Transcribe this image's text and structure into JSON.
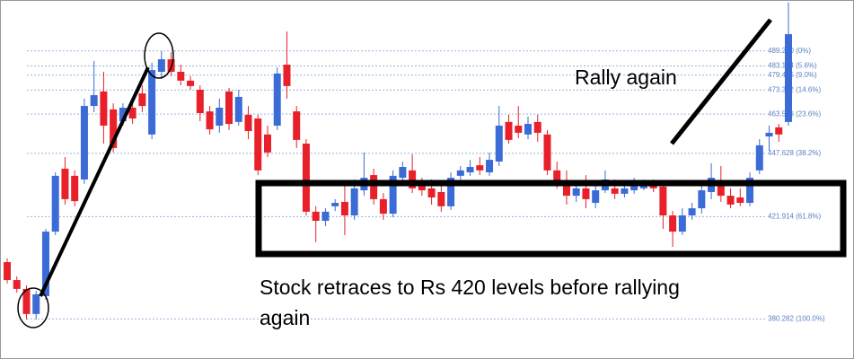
{
  "chart_data": {
    "type": "candlestick",
    "up_color": "#3a6bd6",
    "down_color": "#e8202a",
    "ylim": [
      364,
      510
    ],
    "yticks": [
      {
        "value": 489.28,
        "label": "489.280 (0%)"
      },
      {
        "value": 483.184,
        "label": "483.184 (5.6%)"
      },
      {
        "value": 479.465,
        "label": "479.465 (9.0%)"
      },
      {
        "value": 473.362,
        "label": "473.362 (14.6%)"
      },
      {
        "value": 463.586,
        "label": "463.586 (23.6%)"
      },
      {
        "value": 447.628,
        "label": "447.628 (38.2%)"
      },
      {
        "value": 421.914,
        "label": "421.914 (61.8%)"
      },
      {
        "value": 380.282,
        "label": "380.282 (100.0%)"
      }
    ],
    "grid": true,
    "annotations": [
      "Rally again",
      "Stock retraces to Rs 420 levels before rallying",
      "again"
    ],
    "candles": [
      [
        403.4,
        404.9,
        394.7,
        396.1
      ],
      [
        396.1,
        397.6,
        391.0,
        392.5
      ],
      [
        392.5,
        393.9,
        380.1,
        382.3
      ],
      [
        382.3,
        391.7,
        380.1,
        390.3
      ],
      [
        389.6,
        416.9,
        388.1,
        415.8
      ],
      [
        415.8,
        439.9,
        414.4,
        438.5
      ],
      [
        441.4,
        446.1,
        426.8,
        429.0
      ],
      [
        438.5,
        440.7,
        426.1,
        428.2
      ],
      [
        437.0,
        469.9,
        435.2,
        466.9
      ],
      [
        466.9,
        485.2,
        464.4,
        471.3
      ],
      [
        472.8,
        480.8,
        451.6,
        458.9
      ],
      [
        465.5,
        468.0,
        448.0,
        449.8
      ],
      [
        460.7,
        468.0,
        458.9,
        466.2
      ],
      [
        466.2,
        469.9,
        459.6,
        461.8
      ],
      [
        472.0,
        475.3,
        464.4,
        466.9
      ],
      [
        455.3,
        484.5,
        453.4,
        481.5
      ],
      [
        480.8,
        489.2,
        477.9,
        485.9
      ],
      [
        485.9,
        488.8,
        479.0,
        480.8
      ],
      [
        480.8,
        483.7,
        475.3,
        477.2
      ],
      [
        477.2,
        479.0,
        473.5,
        475.0
      ],
      [
        473.5,
        475.3,
        460.7,
        464.0
      ],
      [
        464.7,
        466.9,
        455.3,
        457.4
      ],
      [
        458.9,
        469.9,
        456.0,
        466.2
      ],
      [
        472.8,
        474.2,
        457.1,
        459.6
      ],
      [
        460.4,
        473.5,
        458.9,
        470.6
      ],
      [
        463.3,
        466.9,
        453.4,
        456.7
      ],
      [
        461.8,
        463.3,
        438.8,
        440.7
      ],
      [
        455.3,
        458.9,
        446.1,
        448.0
      ],
      [
        458.9,
        482.6,
        457.1,
        480.1
      ],
      [
        483.7,
        497.2,
        469.9,
        475.0
      ],
      [
        464.7,
        466.9,
        449.8,
        453.1
      ],
      [
        451.6,
        453.4,
        422.4,
        423.9
      ],
      [
        423.9,
        426.1,
        411.5,
        420.2
      ],
      [
        420.2,
        425.3,
        418.0,
        423.9
      ],
      [
        426.1,
        429.0,
        424.2,
        427.5
      ],
      [
        427.9,
        435.2,
        414.4,
        422.4
      ],
      [
        422.4,
        437.0,
        420.6,
        433.4
      ],
      [
        432.6,
        448.0,
        430.4,
        437.7
      ],
      [
        438.8,
        441.4,
        426.8,
        429.0
      ],
      [
        429.0,
        431.5,
        420.6,
        423.1
      ],
      [
        423.1,
        440.7,
        421.7,
        438.5
      ],
      [
        437.7,
        444.3,
        435.9,
        442.1
      ],
      [
        440.7,
        447.2,
        431.5,
        433.4
      ],
      [
        435.2,
        437.7,
        430.4,
        432.6
      ],
      [
        433.4,
        437.0,
        426.8,
        429.7
      ],
      [
        431.9,
        435.2,
        423.9,
        426.1
      ],
      [
        426.1,
        439.9,
        424.6,
        437.7
      ],
      [
        438.5,
        442.5,
        437.0,
        440.7
      ],
      [
        439.9,
        445.0,
        438.5,
        442.1
      ],
      [
        442.8,
        446.1,
        438.8,
        440.7
      ],
      [
        439.9,
        448.0,
        438.5,
        445.0
      ],
      [
        444.3,
        466.9,
        442.5,
        458.9
      ],
      [
        460.4,
        463.3,
        451.6,
        453.1
      ],
      [
        458.9,
        466.9,
        453.8,
        456.0
      ],
      [
        455.3,
        462.6,
        453.4,
        459.6
      ],
      [
        460.4,
        463.3,
        452.3,
        456.0
      ],
      [
        455.3,
        457.1,
        438.8,
        440.7
      ],
      [
        440.7,
        444.3,
        433.4,
        435.2
      ],
      [
        435.2,
        440.7,
        426.8,
        430.4
      ],
      [
        430.4,
        435.2,
        427.9,
        433.4
      ],
      [
        433.4,
        438.8,
        425.3,
        429.0
      ],
      [
        427.5,
        435.2,
        425.3,
        432.6
      ],
      [
        432.6,
        440.7,
        431.5,
        437.0
      ],
      [
        433.4,
        437.0,
        429.0,
        431.2
      ],
      [
        431.2,
        435.5,
        429.7,
        433.4
      ],
      [
        432.6,
        437.7,
        431.2,
        434.8
      ],
      [
        433.4,
        437.0,
        432.6,
        434.8
      ],
      [
        434.8,
        437.0,
        431.9,
        433.4
      ],
      [
        434.1,
        435.2,
        416.9,
        422.4
      ],
      [
        422.4,
        424.2,
        409.6,
        415.8
      ],
      [
        415.8,
        425.3,
        414.4,
        422.4
      ],
      [
        422.4,
        427.5,
        420.6,
        425.3
      ],
      [
        425.3,
        435.2,
        423.1,
        432.6
      ],
      [
        431.9,
        443.6,
        429.0,
        437.7
      ],
      [
        435.2,
        442.5,
        427.9,
        430.4
      ],
      [
        430.4,
        433.4,
        425.3,
        426.8
      ],
      [
        429.7,
        433.4,
        426.1,
        427.5
      ],
      [
        427.5,
        439.9,
        426.1,
        437.7
      ],
      [
        440.7,
        453.4,
        439.2,
        450.9
      ],
      [
        454.5,
        458.9,
        448.7,
        456.0
      ],
      [
        458.2,
        459.6,
        452.3,
        455.3
      ],
      [
        460.4,
        509.0,
        458.9,
        496.1
      ]
    ]
  }
}
